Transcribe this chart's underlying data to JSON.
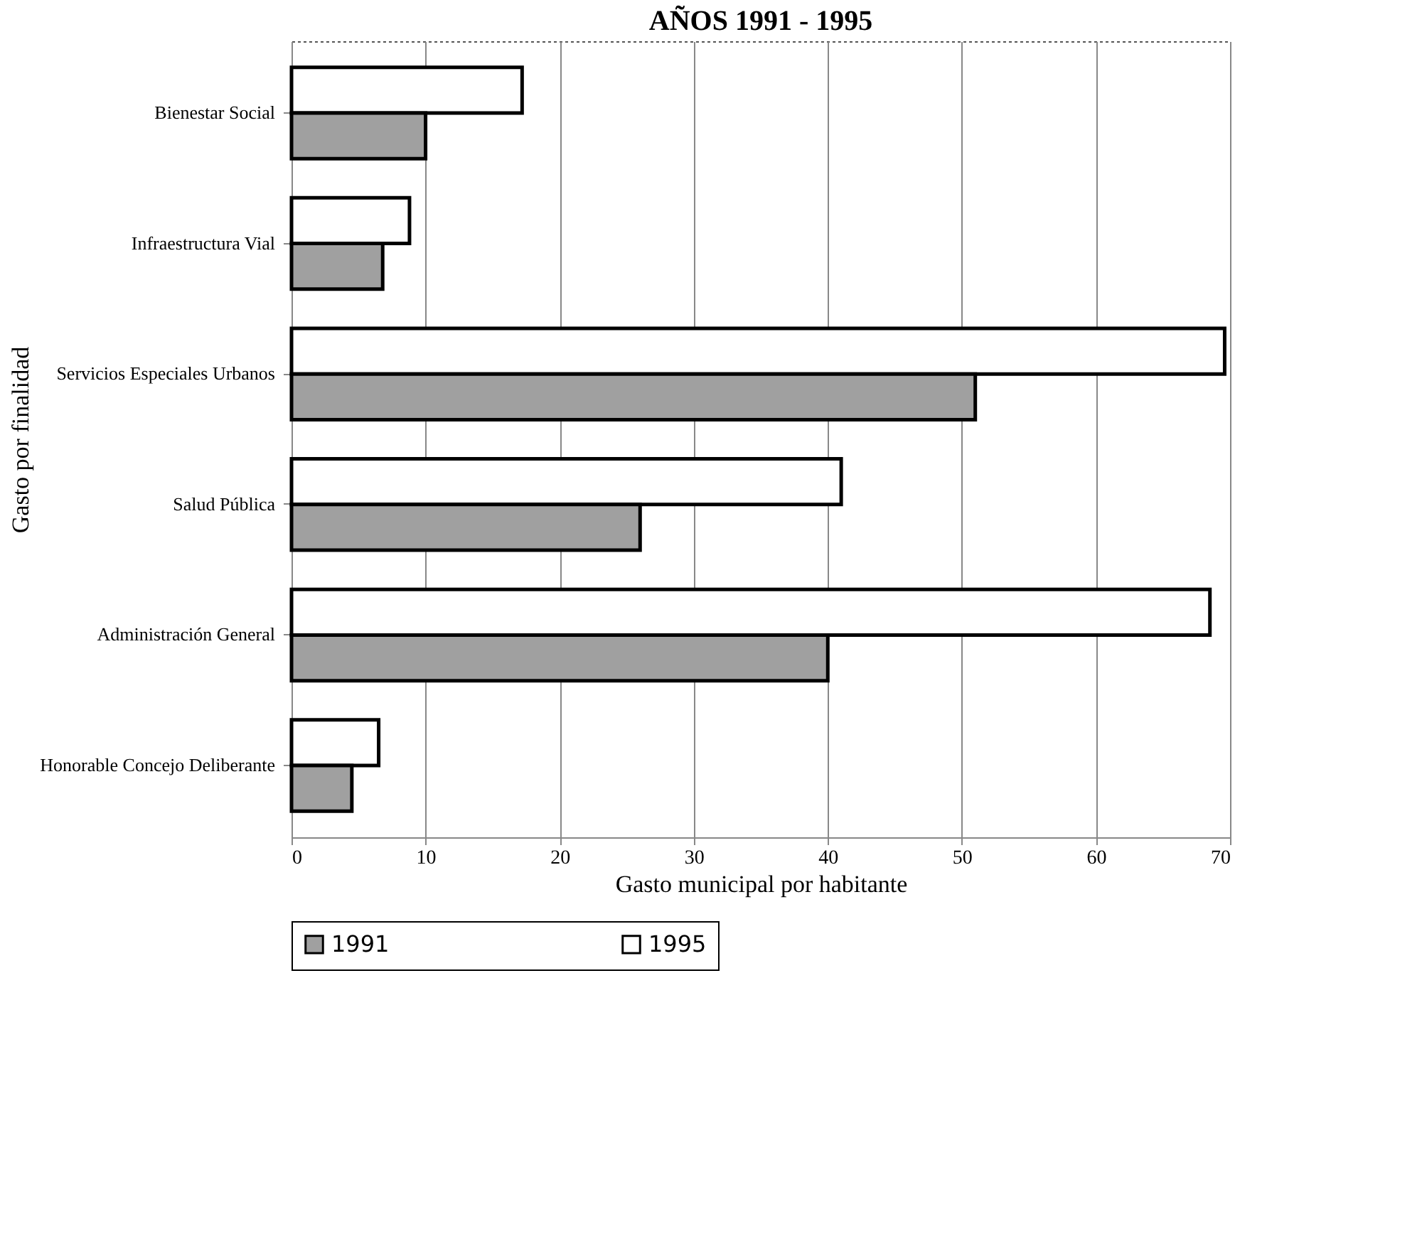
{
  "chart_data": {
    "type": "bar",
    "orientation": "horizontal",
    "title": "AÑOS 1991 - 1995",
    "xlabel": "Gasto municipal por habitante",
    "ylabel": "Gasto por finalidad",
    "categories": [
      "Bienestar Social",
      "Infraestructura Vial",
      "Servicios Especiales Urbanos",
      "Salud Pública",
      "Administración General",
      "Honorable Concejo Deliberante"
    ],
    "series": [
      {
        "name": "1995",
        "color": "#ffffff",
        "values": [
          17.2,
          8.8,
          69.6,
          41,
          68.5,
          6.5
        ]
      },
      {
        "name": "1991",
        "color": "#a0a0a0",
        "values": [
          10,
          6.8,
          51,
          26,
          40,
          4.5
        ]
      }
    ],
    "xlim": [
      0,
      70
    ],
    "xticks": [
      0,
      10,
      20,
      30,
      40,
      50,
      60,
      70
    ],
    "grid": "x",
    "legend": "bottom"
  }
}
